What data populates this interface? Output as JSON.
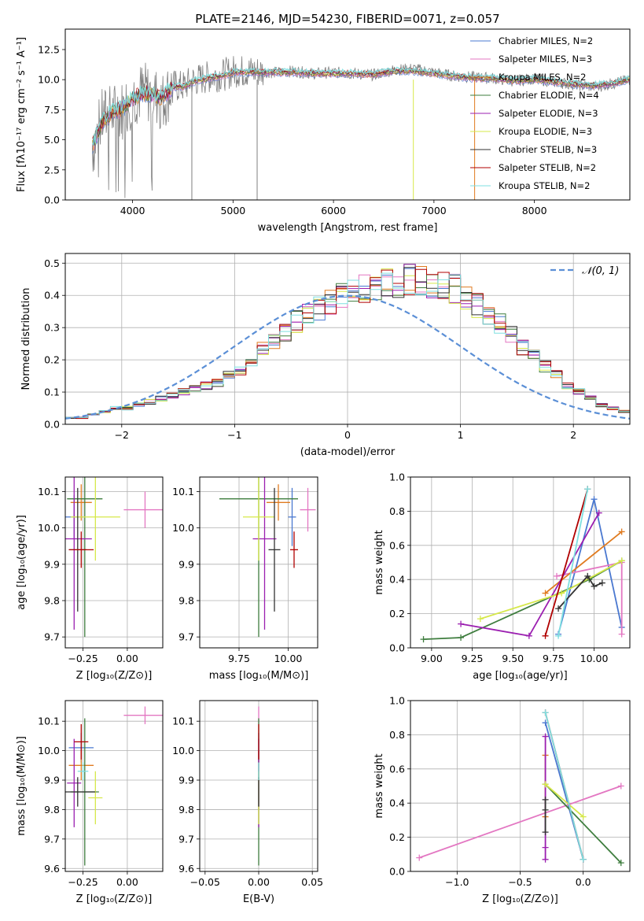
{
  "chart_data": [
    {
      "type": "line",
      "title": "PLATE=2146, MJD=54230, FIBERID=0071, z=0.057",
      "xlabel": "wavelength [Angstrom, rest frame]",
      "ylabel": "Flux [fλ10⁻¹⁷ erg cm⁻² s⁻¹ A⁻¹]",
      "xlim": [
        3330,
        8950
      ],
      "ylim": [
        0,
        14.2
      ],
      "xticks": [
        4000,
        5000,
        6000,
        7000,
        8000
      ],
      "yticks": [
        0,
        2.5,
        5.0,
        7.5,
        10.0,
        12.5
      ],
      "ytick_labels": [
        "0.0",
        "2.5",
        "5.0",
        "7.5",
        "10.0",
        "12.5"
      ],
      "legend_placement": "right",
      "series": [
        {
          "name": "Chabrier MILES, N_SSP=2",
          "color": "#4a78d0"
        },
        {
          "name": "Salpeter MILES, N_SSP=3",
          "color": "#e377c2"
        },
        {
          "name": "Kroupa MILES, N_SSP=2",
          "color": "#e07b20"
        },
        {
          "name": "Chabrier ELODIE, N_SSP=4",
          "color": "#3e7d3e"
        },
        {
          "name": "Salpeter ELODIE, N_SSP=3",
          "color": "#9b1fb0"
        },
        {
          "name": "Kroupa ELODIE, N_SSP=3",
          "color": "#d6e84a"
        },
        {
          "name": "Chabrier STELIB, N_SSP=3",
          "color": "#333333"
        },
        {
          "name": "Salpeter STELIB, N_SSP=2",
          "color": "#b00000"
        },
        {
          "name": "Kroupa STELIB, N_SSP=2",
          "color": "#7fdfe0"
        }
      ],
      "data_points": {
        "wavelength": [
          3600,
          3700,
          3800,
          3900,
          4000,
          4100,
          4200,
          4300,
          4400,
          4500,
          4600,
          4700,
          4800,
          4900,
          5000,
          5200,
          5400,
          5600,
          5800,
          6000,
          6200,
          6400,
          6600,
          6800,
          7000,
          7200,
          7400,
          7600,
          7800,
          8000,
          8200,
          8400,
          8600,
          8800,
          8950
        ],
        "data": [
          4.2,
          6.8,
          7.2,
          7.5,
          8.6,
          9.0,
          8.8,
          8.2,
          9.5,
          9.4,
          9.9,
          10.1,
          10.3,
          10.4,
          10.7,
          10.7,
          10.6,
          10.7,
          10.5,
          10.6,
          10.5,
          10.4,
          10.8,
          10.9,
          10.6,
          10.3,
          10.2,
          10.1,
          9.9,
          10.1,
          9.8,
          9.6,
          9.4,
          9.7,
          10.0
        ],
        "model": [
          4.5,
          6.5,
          7.3,
          7.6,
          8.4,
          8.9,
          8.7,
          8.5,
          9.4,
          9.4,
          9.8,
          10.0,
          10.2,
          10.3,
          10.6,
          10.6,
          10.6,
          10.6,
          10.5,
          10.5,
          10.5,
          10.4,
          10.7,
          10.7,
          10.5,
          10.3,
          10.1,
          10.1,
          9.9,
          10.0,
          9.8,
          9.6,
          9.5,
          9.7,
          10.0
        ]
      }
    },
    {
      "type": "line",
      "xlabel": "(data-model)/error",
      "ylabel": "Normed distribution",
      "xlim": [
        -2.5,
        2.5
      ],
      "ylim": [
        0,
        0.53
      ],
      "xticks": [
        -2,
        -1,
        0,
        1,
        2
      ],
      "yticks": [
        0.0,
        0.1,
        0.2,
        0.3,
        0.4,
        0.5
      ],
      "ytick_labels": [
        "0.0",
        "0.1",
        "0.2",
        "0.3",
        "0.4",
        "0.5"
      ],
      "legend": [
        "𝒩(0, 1)"
      ],
      "legend_placement": "top-right",
      "bins_start": -2.5,
      "bin_width": 0.1,
      "heights": [
        0.02,
        0.02,
        0.03,
        0.04,
        0.05,
        0.05,
        0.06,
        0.07,
        0.08,
        0.09,
        0.1,
        0.11,
        0.12,
        0.13,
        0.15,
        0.17,
        0.2,
        0.23,
        0.26,
        0.29,
        0.32,
        0.34,
        0.36,
        0.38,
        0.4,
        0.41,
        0.42,
        0.43,
        0.44,
        0.44,
        0.45,
        0.45,
        0.44,
        0.43,
        0.42,
        0.4,
        0.37,
        0.34,
        0.31,
        0.28,
        0.24,
        0.21,
        0.18,
        0.15,
        0.12,
        0.1,
        0.08,
        0.06,
        0.05,
        0.04
      ]
    },
    {
      "type": "scatter",
      "xlabel": "Z [log₁₀(Z/Z⊙)]",
      "ylabel": "age  [log₁₀(age/yr)]",
      "xlim": [
        -0.35,
        0.2
      ],
      "ylim": [
        9.67,
        10.14
      ],
      "xticks": [
        -0.25,
        0.0
      ],
      "xtick_labels": [
        "−0.25",
        "0.00"
      ],
      "yticks": [
        9.7,
        9.8,
        9.9,
        10.0,
        10.1
      ],
      "ytick_labels": [
        "9.7",
        "9.8",
        "9.9",
        "10.0",
        "10.1"
      ],
      "points": [
        {
          "x": -0.3,
          "y": 10.03,
          "xerr": 0.05,
          "yerr": 0.06,
          "color": "#4a78d0"
        },
        {
          "x": 0.1,
          "y": 10.05,
          "xerr": 0.12,
          "yerr": 0.05,
          "color": "#e377c2"
        },
        {
          "x": -0.26,
          "y": 10.07,
          "xerr": 0.06,
          "yerr": 0.05,
          "color": "#e07b20"
        },
        {
          "x": -0.24,
          "y": 10.08,
          "xerr": 0.1,
          "yerr": 0.38,
          "color": "#3e7d3e"
        },
        {
          "x": -0.3,
          "y": 9.97,
          "xerr": 0.1,
          "yerr": 0.25,
          "color": "#9b1fb0"
        },
        {
          "x": -0.18,
          "y": 10.03,
          "xerr": 0.14,
          "yerr": 0.12,
          "color": "#d6e84a"
        },
        {
          "x": -0.28,
          "y": 9.94,
          "xerr": 0.05,
          "yerr": 0.17,
          "color": "#333333"
        },
        {
          "x": -0.26,
          "y": 9.94,
          "xerr": 0.07,
          "yerr": 0.05,
          "color": "#b00000"
        }
      ]
    },
    {
      "type": "scatter",
      "xlabel": "mass [log₁₀(M/M⊙)]",
      "ylabel": "",
      "xlim": [
        9.55,
        10.15
      ],
      "ylim": [
        9.67,
        10.14
      ],
      "xticks": [
        9.75,
        10.0
      ],
      "xtick_labels": [
        "9.75",
        "10.00"
      ],
      "yticks": [
        9.7,
        9.8,
        9.9,
        10.0,
        10.1
      ],
      "ytick_labels": [
        "9.7",
        "9.8",
        "9.9",
        "10.0",
        "10.1"
      ],
      "points": [
        {
          "x": 10.02,
          "y": 10.03,
          "xerr": 0.02,
          "yerr": 0.08,
          "color": "#4a78d0"
        },
        {
          "x": 10.1,
          "y": 10.05,
          "xerr": 0.04,
          "yerr": 0.06,
          "color": "#e377c2"
        },
        {
          "x": 9.95,
          "y": 10.07,
          "xerr": 0.06,
          "yerr": 0.05,
          "color": "#e07b20"
        },
        {
          "x": 9.85,
          "y": 10.08,
          "xerr": 0.2,
          "yerr": 0.38,
          "color": "#3e7d3e"
        },
        {
          "x": 9.88,
          "y": 9.97,
          "xerr": 0.06,
          "yerr": 0.25,
          "color": "#9b1fb0"
        },
        {
          "x": 9.85,
          "y": 10.03,
          "xerr": 0.08,
          "yerr": 0.12,
          "color": "#d6e84a"
        },
        {
          "x": 9.93,
          "y": 9.94,
          "xerr": 0.03,
          "yerr": 0.17,
          "color": "#333333"
        },
        {
          "x": 10.03,
          "y": 9.94,
          "xerr": 0.02,
          "yerr": 0.05,
          "color": "#b00000"
        }
      ]
    },
    {
      "type": "line",
      "xlabel": "age  [log₁₀(age/yr)]",
      "ylabel": "mass weight",
      "xlim": [
        8.87,
        10.22
      ],
      "ylim": [
        0,
        1.0
      ],
      "xticks": [
        9.0,
        9.25,
        9.5,
        9.75,
        10.0
      ],
      "xtick_labels": [
        "9.00",
        "9.25",
        "9.50",
        "9.75",
        "10.00"
      ],
      "yticks": [
        0,
        0.2,
        0.4,
        0.6,
        0.8,
        1.0
      ],
      "ytick_labels": [
        "0.0",
        "0.2",
        "0.4",
        "0.6",
        "0.8",
        "1.0"
      ],
      "series": [
        {
          "color": "#4a78d0",
          "x": [
            9.78,
            10.0,
            10.17
          ],
          "y": [
            0.08,
            0.87,
            0.12
          ]
        },
        {
          "color": "#e377c2",
          "x": [
            9.77,
            10.17,
            10.17
          ],
          "y": [
            0.42,
            0.5,
            0.08
          ]
        },
        {
          "color": "#e07b20",
          "x": [
            9.7,
            10.17
          ],
          "y": [
            0.32,
            0.68
          ]
        },
        {
          "color": "#3e7d3e",
          "x": [
            8.95,
            9.18,
            9.97,
            10.17
          ],
          "y": [
            0.05,
            0.06,
            0.4,
            0.51
          ]
        },
        {
          "color": "#9b1fb0",
          "x": [
            9.18,
            9.6,
            10.03
          ],
          "y": [
            0.14,
            0.07,
            0.79
          ]
        },
        {
          "color": "#d6e84a",
          "x": [
            9.3,
            9.8,
            10.17
          ],
          "y": [
            0.17,
            0.32,
            0.51
          ]
        },
        {
          "color": "#333333",
          "x": [
            9.78,
            9.96,
            10.0,
            10.05
          ],
          "y": [
            0.23,
            0.42,
            0.36,
            0.38
          ]
        },
        {
          "color": "#b00000",
          "x": [
            9.7,
            9.96
          ],
          "y": [
            0.07,
            0.93
          ]
        },
        {
          "color": "#7fdfe0",
          "x": [
            9.78,
            9.96
          ],
          "y": [
            0.07,
            0.93
          ]
        }
      ]
    },
    {
      "type": "scatter",
      "xlabel": "Z [log₁₀(Z/Z⊙)]",
      "ylabel": "mass [log₁₀(M/M⊙)]",
      "xlim": [
        -0.35,
        0.2
      ],
      "ylim": [
        9.59,
        10.17
      ],
      "xticks": [
        -0.25,
        0.0
      ],
      "xtick_labels": [
        "−0.25",
        "0.00"
      ],
      "yticks": [
        9.6,
        9.7,
        9.8,
        9.9,
        10.0,
        10.1
      ],
      "ytick_labels": [
        "9.6",
        "9.7",
        "9.8",
        "9.9",
        "10.0",
        "10.1"
      ],
      "points": [
        {
          "x": -0.26,
          "y": 10.01,
          "xerr": 0.07,
          "yerr": 0.05,
          "color": "#4a78d0"
        },
        {
          "x": 0.1,
          "y": 10.12,
          "xerr": 0.12,
          "yerr": 0.03,
          "color": "#e377c2"
        },
        {
          "x": -0.26,
          "y": 9.95,
          "xerr": 0.07,
          "yerr": 0.05,
          "color": "#e07b20"
        },
        {
          "x": -0.24,
          "y": 9.86,
          "xerr": 0.08,
          "yerr": 0.25,
          "color": "#3e7d3e"
        },
        {
          "x": -0.3,
          "y": 9.89,
          "xerr": 0.04,
          "yerr": 0.15,
          "color": "#9b1fb0"
        },
        {
          "x": -0.18,
          "y": 9.84,
          "xerr": 0.04,
          "yerr": 0.09,
          "color": "#d6e84a"
        },
        {
          "x": -0.28,
          "y": 9.86,
          "xerr": 0.1,
          "yerr": 0.05,
          "color": "#333333"
        },
        {
          "x": -0.26,
          "y": 10.03,
          "xerr": 0.04,
          "yerr": 0.06,
          "color": "#b00000"
        },
        {
          "x": -0.25,
          "y": 9.93,
          "xerr": 0.03,
          "yerr": 0.03,
          "color": "#7fdfe0"
        }
      ]
    },
    {
      "type": "scatter",
      "xlabel": "E(B-V)",
      "ylabel": "",
      "xlim": [
        -0.055,
        0.055
      ],
      "ylim": [
        9.59,
        10.17
      ],
      "xticks": [
        -0.05,
        0.0,
        0.05
      ],
      "xtick_labels": [
        "−0.05",
        "0.00",
        "0.05"
      ],
      "yticks": [
        9.6,
        9.7,
        9.8,
        9.9,
        10.0,
        10.1
      ],
      "ytick_labels": [
        "9.6",
        "9.7",
        "9.8",
        "9.9",
        "10.0",
        "10.1"
      ],
      "points": [
        {
          "x": 0,
          "y": 10.01,
          "yerr": 0.05,
          "color": "#4a78d0"
        },
        {
          "x": 0,
          "y": 10.12,
          "yerr": 0.03,
          "color": "#e377c2"
        },
        {
          "x": 0,
          "y": 9.95,
          "yerr": 0.05,
          "color": "#e07b20"
        },
        {
          "x": 0,
          "y": 9.86,
          "yerr": 0.25,
          "color": "#3e7d3e"
        },
        {
          "x": 0,
          "y": 9.89,
          "yerr": 0.15,
          "color": "#9b1fb0"
        },
        {
          "x": 0,
          "y": 9.84,
          "yerr": 0.09,
          "color": "#d6e84a"
        },
        {
          "x": 0,
          "y": 9.86,
          "yerr": 0.05,
          "color": "#333333"
        },
        {
          "x": 0,
          "y": 10.03,
          "yerr": 0.06,
          "color": "#b00000"
        },
        {
          "x": 0,
          "y": 9.93,
          "yerr": 0.03,
          "color": "#7fdfe0"
        }
      ]
    },
    {
      "type": "line",
      "xlabel": "Z [log₁₀(Z/Z⊙)]",
      "ylabel": "mass weight",
      "xlim": [
        -1.37,
        0.37
      ],
      "ylim": [
        0,
        1.0
      ],
      "xticks": [
        -1.0,
        -0.5,
        0.0
      ],
      "xtick_labels": [
        "−1.0",
        "−0.5",
        "0.0"
      ],
      "yticks": [
        0,
        0.2,
        0.4,
        0.6,
        0.8,
        1.0
      ],
      "ytick_labels": [
        "0.0",
        "0.2",
        "0.4",
        "0.6",
        "0.8",
        "1.0"
      ],
      "series": [
        {
          "color": "#4a78d0",
          "x": [
            -0.3,
            0.0
          ],
          "y": [
            0.87,
            0.07
          ]
        },
        {
          "color": "#e377c2",
          "x": [
            -1.3,
            0.3
          ],
          "y": [
            0.08,
            0.5
          ]
        },
        {
          "color": "#e07b20",
          "x": [
            -0.3,
            -0.3
          ],
          "y": [
            0.32,
            0.68
          ]
        },
        {
          "color": "#3e7d3e",
          "x": [
            -0.3,
            0.3
          ],
          "y": [
            0.51,
            0.05
          ]
        },
        {
          "color": "#9b1fb0",
          "x": [
            -0.3,
            -0.3,
            -0.3
          ],
          "y": [
            0.14,
            0.07,
            0.79
          ]
        },
        {
          "color": "#d6e84a",
          "x": [
            -0.3,
            0.0
          ],
          "y": [
            0.51,
            0.32
          ]
        },
        {
          "color": "#333333",
          "x": [
            -0.3,
            -0.3,
            -0.3
          ],
          "y": [
            0.23,
            0.42,
            0.36
          ]
        },
        {
          "color": "#b00000",
          "x": [
            -0.3,
            0.0
          ],
          "y": [
            0.93,
            0.07
          ]
        },
        {
          "color": "#7fdfe0",
          "x": [
            -0.3,
            0.0
          ],
          "y": [
            0.93,
            0.07
          ]
        }
      ]
    }
  ]
}
